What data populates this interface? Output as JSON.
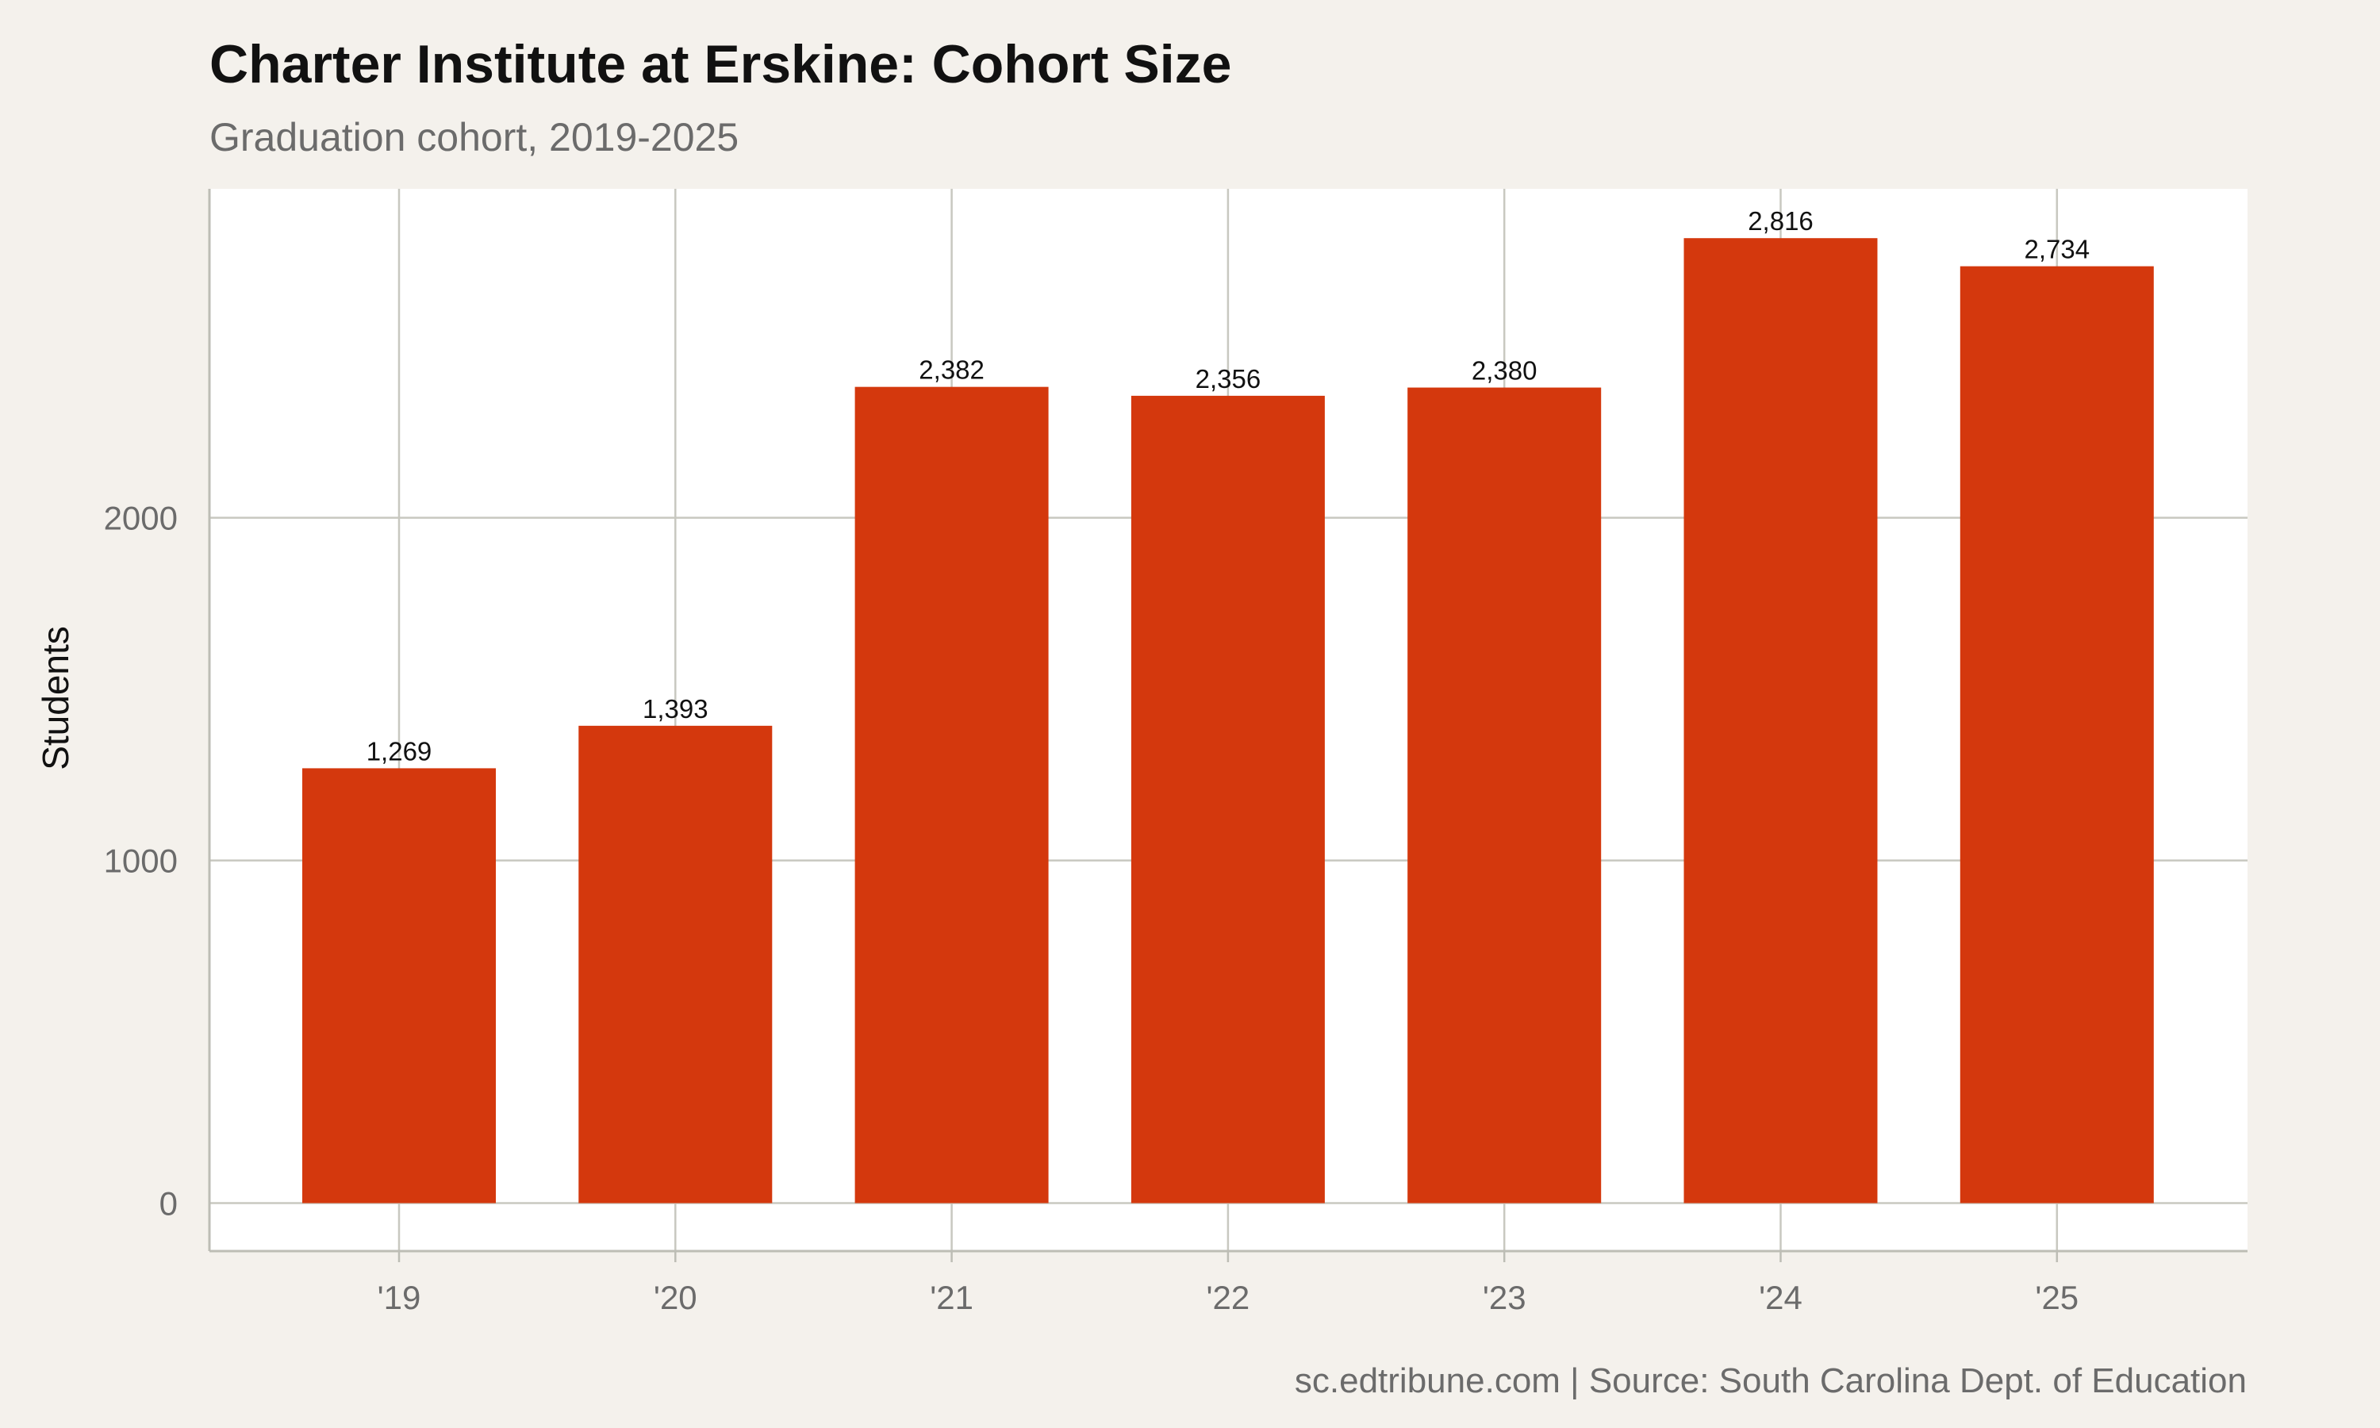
{
  "chart_data": {
    "type": "bar",
    "title": "Charter Institute at Erskine: Cohort Size",
    "subtitle": "Graduation cohort, 2019-2025",
    "xlabel": "",
    "ylabel": "Students",
    "categories": [
      "'19",
      "'20",
      "'21",
      "'22",
      "'23",
      "'24",
      "'25"
    ],
    "values": [
      1269,
      1393,
      2382,
      2356,
      2380,
      2816,
      2734
    ],
    "data_labels": [
      "1,269",
      "1,393",
      "2,382",
      "2,356",
      "2,380",
      "2,816",
      "2,734"
    ],
    "yticks": [
      0,
      1000,
      2000
    ],
    "ytick_labels": [
      "0",
      "1000",
      "2000"
    ],
    "ylim": [
      -140,
      2960
    ],
    "grid": true,
    "legend": "none",
    "bar_color": "#d4380d",
    "background_color": "#f4f1ec",
    "panel_color": "#ffffff",
    "grid_color": "#c8c8c0",
    "caption": "sc.edtribune.com | Source: South Carolina Dept. of Education"
  }
}
